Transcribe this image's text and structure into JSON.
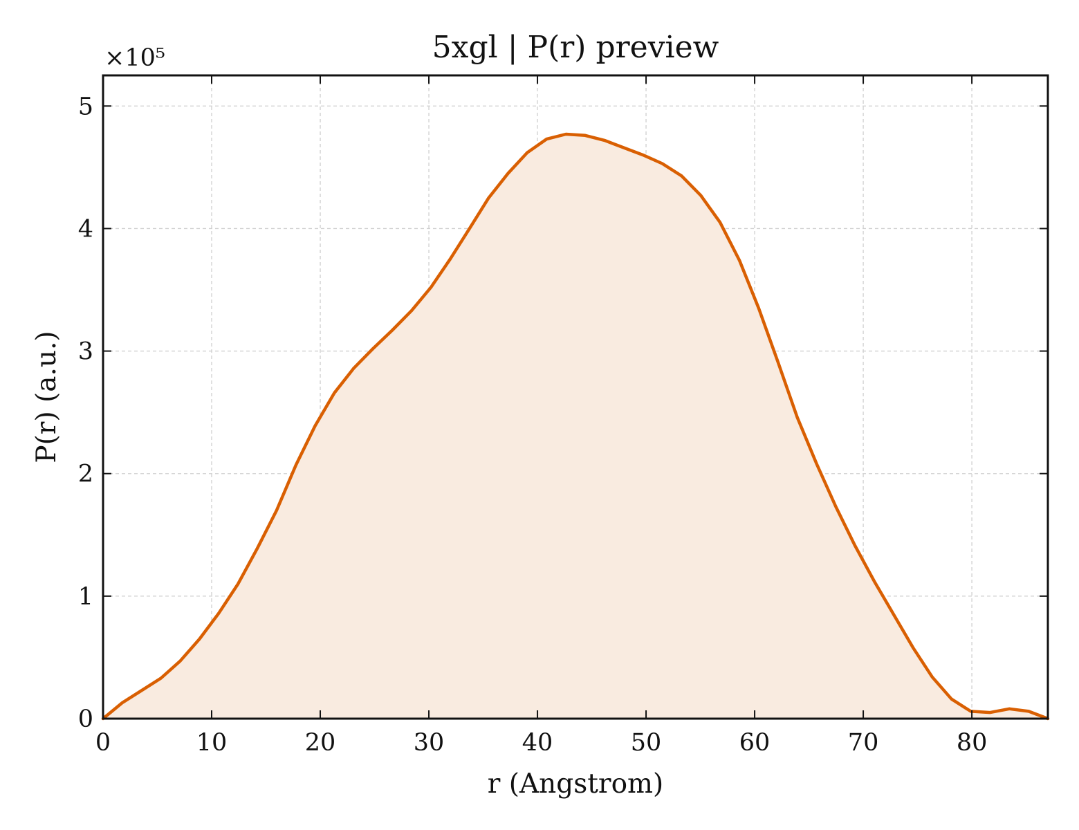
{
  "chart_data": {
    "type": "area",
    "title": "5xgl | P(r) preview",
    "xlabel": "r (Angstrom)",
    "ylabel": "P(r) (a.u.)",
    "y_scale_label": "×10⁵",
    "y_scale_factor": 100000,
    "xlim": [
      0,
      87
    ],
    "ylim": [
      0,
      5.25
    ],
    "x_ticks": [
      0,
      10,
      20,
      30,
      40,
      50,
      60,
      70,
      80
    ],
    "y_ticks": [
      0,
      1,
      2,
      3,
      4,
      5
    ],
    "grid": true,
    "line_color": "#d95f02",
    "fill_color": "#f9ebe0",
    "series": [
      {
        "x": [
          0,
          1.77,
          3.55,
          5.33,
          7.1,
          8.88,
          10.65,
          12.43,
          14.2,
          15.98,
          17.76,
          19.53,
          21.31,
          23.08,
          24.86,
          26.63,
          28.41,
          30.19,
          31.96,
          33.74,
          35.51,
          37.29,
          39.06,
          40.84,
          42.62,
          44.39,
          46.17,
          47.94,
          49.72,
          51.49,
          53.27,
          55.04,
          56.82,
          58.6,
          60.37,
          62.15,
          63.92,
          65.7,
          67.47,
          69.25,
          71.02,
          72.8,
          74.58,
          76.35,
          78.13,
          79.9,
          81.68,
          83.45,
          85.23,
          87.0
        ],
        "y": [
          0.0,
          0.13,
          0.23,
          0.33,
          0.47,
          0.65,
          0.86,
          1.1,
          1.39,
          1.7,
          2.07,
          2.39,
          2.66,
          2.86,
          3.02,
          3.17,
          3.33,
          3.52,
          3.75,
          4.0,
          4.25,
          4.45,
          4.62,
          4.73,
          4.77,
          4.76,
          4.72,
          4.66,
          4.6,
          4.53,
          4.43,
          4.27,
          4.05,
          3.74,
          3.35,
          2.91,
          2.46,
          2.08,
          1.73,
          1.41,
          1.12,
          0.85,
          0.58,
          0.34,
          0.16,
          0.06,
          0.05,
          0.08,
          0.06,
          0.0
        ]
      }
    ]
  }
}
